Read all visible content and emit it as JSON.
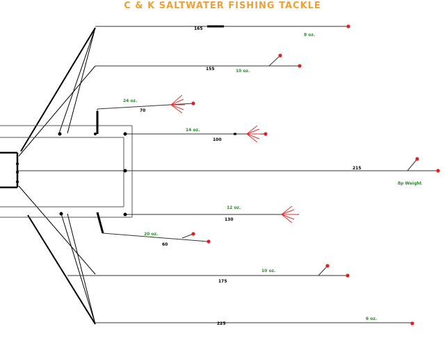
{
  "title": "C & K SALTWATER FISHING TACKLE",
  "labels": {
    "line1_len": "165",
    "line1_oz": "8 oz.",
    "line2_len": "155",
    "line2_oz": "10 oz.",
    "line3_oz": "24 oz.",
    "line3_len": "70",
    "line4_oz": "14 oz.",
    "line4_len": "100",
    "line5_len": "215",
    "line5_oz": "8p Weight",
    "line6_oz": "12 oz.",
    "line6_len": "130",
    "line7_oz": "20 oz.",
    "line7_len": "60",
    "line8_oz": "10 oz.",
    "line8_len": "175",
    "line9_len": "225",
    "line9_oz": "6 oz."
  },
  "colors": {
    "title": "#f0a030",
    "weight_label": "#2a8a2a",
    "sinker": "#e02020",
    "hook": "#e03030"
  }
}
